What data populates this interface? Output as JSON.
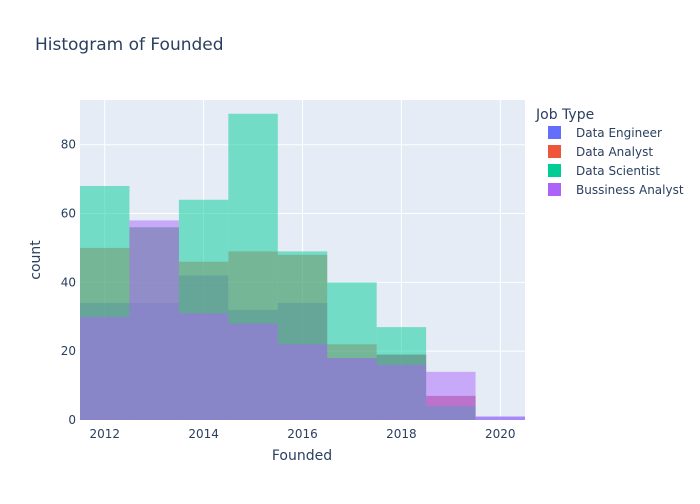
{
  "chart_data": {
    "type": "bar",
    "title": "Histogram of Founded",
    "xlabel": "Founded",
    "ylabel": "count",
    "legend_title": "Job Type",
    "legend_position": "top-right",
    "barmode": "overlay",
    "bin_edges": [
      2011.5,
      2012.5,
      2013.5,
      2014.5,
      2015.5,
      2016.5,
      2017.5,
      2018.5,
      2019.5,
      2020.5
    ],
    "xlim": [
      2011.5,
      2020.5
    ],
    "ylim": [
      0,
      93
    ],
    "x_ticks": [
      2012,
      2014,
      2016,
      2018,
      2020
    ],
    "y_ticks": [
      0,
      20,
      40,
      60,
      80
    ],
    "grid": true,
    "series": [
      {
        "name": "Data Engineer",
        "color": "#636efa",
        "values": [
          34,
          34,
          42,
          32,
          34,
          18,
          19,
          7,
          1
        ]
      },
      {
        "name": "Data Analyst",
        "color": "#EF553B",
        "values": [
          50,
          56,
          46,
          49,
          48,
          22,
          19,
          7,
          0
        ]
      },
      {
        "name": "Data Scientist",
        "color": "#00cc96",
        "values": [
          68,
          56,
          64,
          89,
          49,
          40,
          27,
          4,
          0
        ]
      },
      {
        "name": "Bussiness Analyst",
        "color": "#ab63fa",
        "values": [
          30,
          58,
          31,
          28,
          22,
          18,
          16,
          14,
          1
        ]
      }
    ]
  }
}
